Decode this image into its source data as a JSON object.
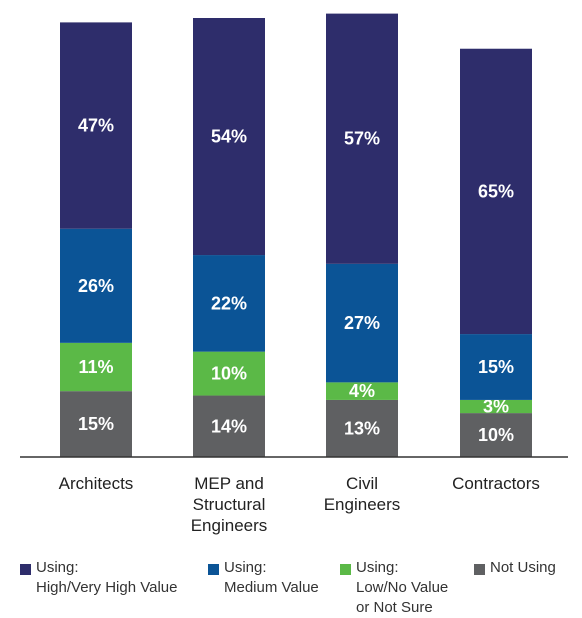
{
  "chart_data": {
    "type": "bar",
    "stacked": true,
    "categories": [
      "Architects",
      "MEP and\nStructural\nEngineers",
      "Civil\nEngineers",
      "Contractors"
    ],
    "series": [
      {
        "name": "Not Using",
        "color": "#5f6062",
        "values": [
          15,
          14,
          13,
          10
        ]
      },
      {
        "name": "Using:\nLow/No Value\nor Not Sure",
        "color": "#5bb947",
        "values": [
          11,
          10,
          4,
          3
        ]
      },
      {
        "name": "Using:\nMedium Value",
        "color": "#0b5496",
        "values": [
          26,
          22,
          27,
          15
        ]
      },
      {
        "name": "Using:\nHigh/Very High Value",
        "color": "#2e2d6b",
        "values": [
          47,
          54,
          57,
          65
        ]
      }
    ],
    "ylim": [
      0,
      100
    ],
    "value_suffix": "%",
    "legend_position": "bottom",
    "grid": false
  },
  "legend": {
    "high": "Using:\nHigh/Very High Value",
    "medium": "Using:\nMedium Value",
    "low": "Using:\nLow/No Value\nor Not Sure",
    "not_using": "Not Using"
  },
  "colors": {
    "high": "#2e2d6b",
    "medium": "#0b5496",
    "low": "#5bb947",
    "not_using": "#5f6062"
  }
}
